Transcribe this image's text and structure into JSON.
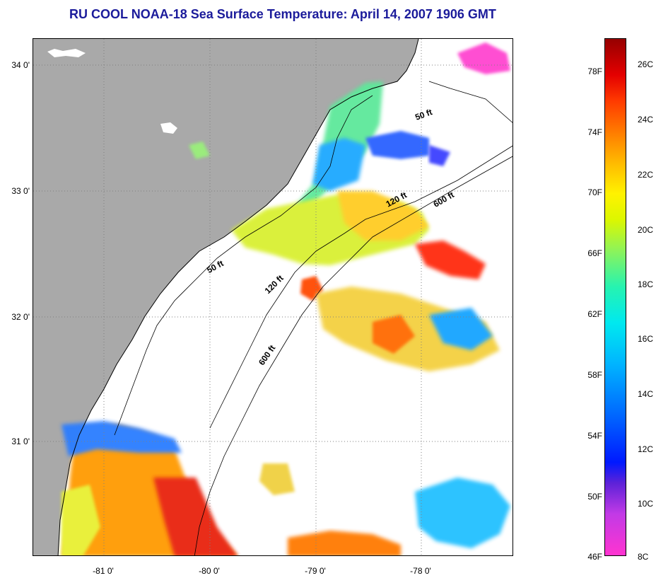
{
  "title": "RU COOL  NOAA-18  Sea Surface Temperature:  April 14, 2007 1906 GMT",
  "map": {
    "lat_labels": [
      "34 0'",
      "33 0'",
      "32 0'",
      "31 0'"
    ],
    "lon_labels": [
      "-81 0'",
      "-80 0'",
      "-79 0'",
      "-78 0'"
    ],
    "contours": [
      "50 ft",
      "50 ft",
      "120 ft",
      "120 ft",
      "600 ft",
      "600 ft"
    ],
    "colors": {
      "land": "#a9a9a9",
      "ocean": "#ffffff",
      "grid": "#808080"
    }
  },
  "colorbar": {
    "fahrenheit": [
      "78F",
      "74F",
      "70F",
      "66F",
      "62F",
      "58F",
      "54F",
      "50F",
      "46F"
    ],
    "celsius": [
      "26C",
      "24C",
      "22C",
      "20C",
      "18C",
      "16C",
      "14C",
      "12C",
      "10C",
      "8C"
    ]
  }
}
